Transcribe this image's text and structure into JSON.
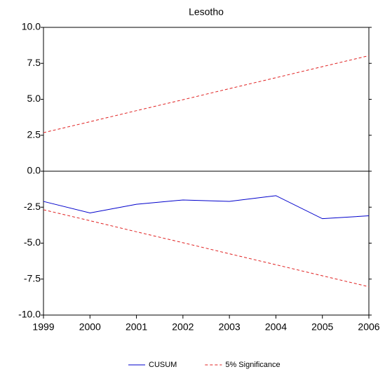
{
  "chart_data": {
    "type": "line",
    "title": "Lesotho",
    "x": [
      1999,
      2000,
      2001,
      2002,
      2003,
      2004,
      2005,
      2006
    ],
    "xlim": [
      1999,
      2006
    ],
    "xticks": [
      1999,
      2000,
      2001,
      2002,
      2003,
      2004,
      2005,
      2006
    ],
    "ylim": [
      -10,
      10
    ],
    "yticks": [
      {
        "value": -10,
        "label": "-10.0"
      },
      {
        "value": -7.5,
        "label": "-7.5"
      },
      {
        "value": -5,
        "label": "-5.0"
      },
      {
        "value": -2.5,
        "label": "-2.5"
      },
      {
        "value": 0,
        "label": "0.0"
      },
      {
        "value": 2.5,
        "label": "2.5"
      },
      {
        "value": 5,
        "label": "5.0"
      },
      {
        "value": 7.5,
        "label": "7.5"
      },
      {
        "value": 10,
        "label": "10.0"
      }
    ],
    "zero_line": true,
    "series": [
      {
        "name": "CUSUM",
        "color": "#0000cc",
        "values": [
          -2.1,
          -2.9,
          -2.3,
          -2.0,
          -2.1,
          -1.7,
          -3.3,
          -3.1
        ]
      }
    ],
    "bounds": {
      "name": "5% Significance",
      "color": "#e02020",
      "upper": [
        2.68,
        3.44,
        4.21,
        4.97,
        5.74,
        6.5,
        7.27,
        8.03
      ],
      "lower": [
        -2.68,
        -3.44,
        -4.21,
        -4.97,
        -5.74,
        -6.5,
        -7.27,
        -8.03
      ]
    }
  }
}
